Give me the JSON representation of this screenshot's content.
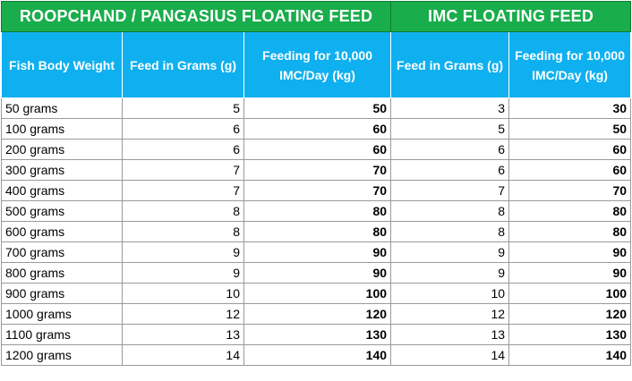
{
  "groups": {
    "left": "ROOPCHAND / PANGASIUS FLOATING FEED",
    "right": "IMC FLOATING FEED"
  },
  "columns": [
    "Fish Body Weight",
    "Feed in      Grams (g)",
    "Feeding for 10,000 IMC/Day (kg)",
    "Feed in      Grams (g)",
    "Feeding for 10,000 IMC/Day (kg)"
  ],
  "rows": [
    [
      "50 grams",
      "5",
      "50",
      "3",
      "30"
    ],
    [
      "100 grams",
      "6",
      "60",
      "5",
      "50"
    ],
    [
      "200 grams",
      "6",
      "60",
      "6",
      "60"
    ],
    [
      "300 grams",
      "7",
      "70",
      "6",
      "60"
    ],
    [
      "400 grams",
      "7",
      "70",
      "7",
      "70"
    ],
    [
      "500 grams",
      "8",
      "80",
      "8",
      "80"
    ],
    [
      "600 grams",
      "8",
      "80",
      "8",
      "80"
    ],
    [
      "700 grams",
      "9",
      "90",
      "9",
      "90"
    ],
    [
      "800 grams",
      "9",
      "90",
      "9",
      "90"
    ],
    [
      "900 grams",
      "10",
      "100",
      "10",
      "100"
    ],
    [
      "1000 grams",
      "12",
      "120",
      "12",
      "120"
    ],
    [
      "1100 grams",
      "13",
      "130",
      "13",
      "130"
    ],
    [
      "1200 grams",
      "14",
      "140",
      "14",
      "140"
    ]
  ],
  "colors": {
    "group_header": "#19ad4b",
    "column_header": "#0fb0ef"
  }
}
